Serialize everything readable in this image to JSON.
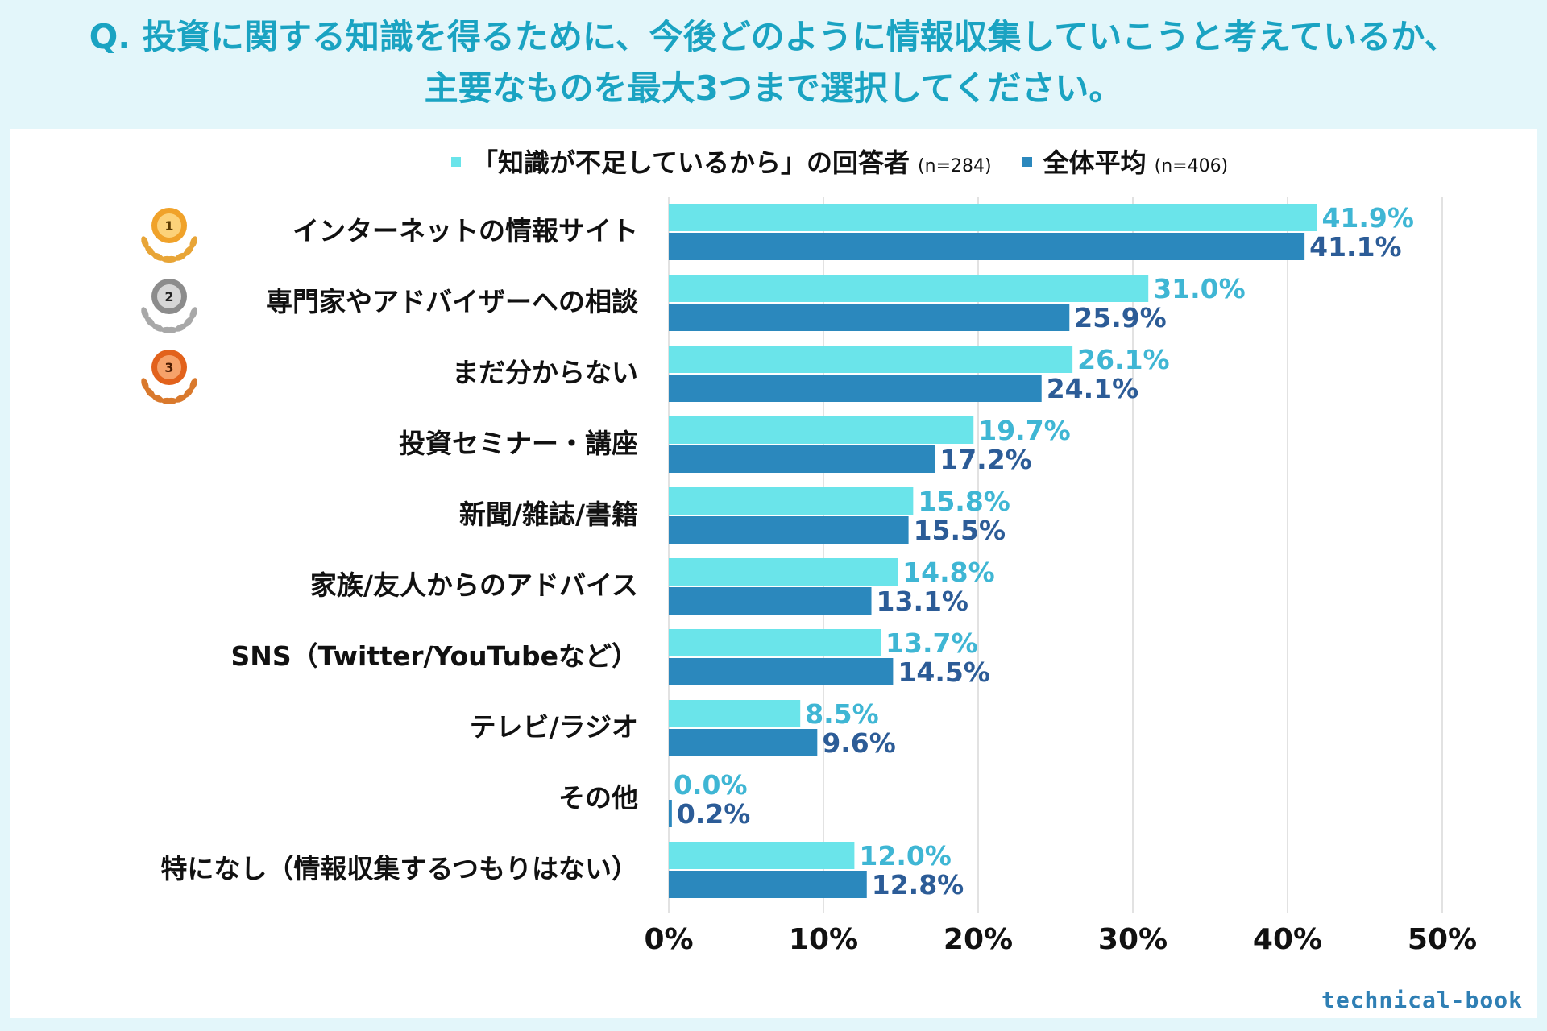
{
  "title": {
    "line1": "Q. 投資に関する知識を得るために、今後どのように情報収集していこうと考えているか、",
    "line2": "主要なものを最大3つまで選択してください。"
  },
  "legend": {
    "series1_label": "「知識が不足しているから」の回答者",
    "series1_n": "(n=284)",
    "series2_label": "全体平均",
    "series2_n": "(n=406)"
  },
  "logo": "technical-book",
  "colors": {
    "series1": "#6ae4ea",
    "series2": "#2b88bd",
    "series1_text": "#3fb6d4",
    "series2_text": "#2c5c97",
    "grid": "#d9d9d9",
    "title": "#1aa3c2"
  },
  "medals": [
    {
      "rank": "1",
      "icon": "gold-medal-icon"
    },
    {
      "rank": "2",
      "icon": "silver-medal-icon"
    },
    {
      "rank": "3",
      "icon": "bronze-medal-icon"
    }
  ],
  "chart_data": {
    "type": "bar",
    "orientation": "horizontal",
    "categories": [
      "インターネットの情報サイト",
      "専門家やアドバイザーへの相談",
      "まだ分からない",
      "投資セミナー・講座",
      "新聞/雑誌/書籍",
      "家族/友人からのアドバイス",
      "SNS（Twitter/YouTubeなど）",
      "テレビ/ラジオ",
      "その他",
      "特になし（情報収集するつもりはない）"
    ],
    "series": [
      {
        "name": "「知識が不足しているから」の回答者 (n=284)",
        "values": [
          41.9,
          31.0,
          26.1,
          19.7,
          15.8,
          14.8,
          13.7,
          8.5,
          0.0,
          12.0
        ],
        "labels": [
          "41.9%",
          "31.0%",
          "26.1%",
          "19.7%",
          "15.8%",
          "14.8%",
          "13.7%",
          "8.5%",
          "0.0%",
          "12.0%"
        ]
      },
      {
        "name": "全体平均 (n=406)",
        "values": [
          41.1,
          25.9,
          24.1,
          17.2,
          15.5,
          13.1,
          14.5,
          9.6,
          0.2,
          12.8
        ],
        "labels": [
          "41.1%",
          "25.9%",
          "24.1%",
          "17.2%",
          "15.5%",
          "13.1%",
          "14.5%",
          "9.6%",
          "0.2%",
          "12.8%"
        ]
      }
    ],
    "xlim": [
      0,
      50
    ],
    "xticks": [
      0,
      10,
      20,
      30,
      40,
      50
    ],
    "xtick_labels": [
      "0%",
      "10%",
      "20%",
      "30%",
      "40%",
      "50%"
    ],
    "grid": true,
    "legend_position": "top"
  }
}
